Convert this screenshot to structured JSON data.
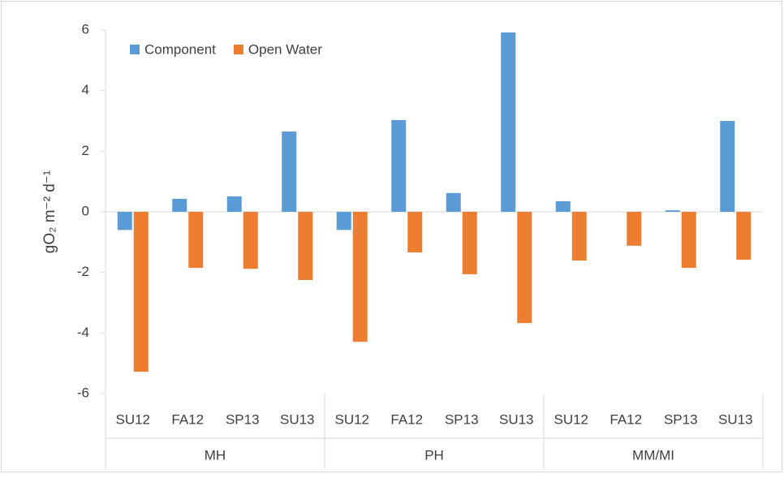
{
  "chart_data": {
    "type": "bar",
    "y_label": "gO₂ m⁻² d⁻¹",
    "categories": [
      "SU12",
      "FA12",
      "SP13",
      "SU13",
      "SU12",
      "FA12",
      "SP13",
      "SU13",
      "SU12",
      "FA12",
      "SP13",
      "SU13"
    ],
    "group_labels": [
      "MH",
      "PH",
      "MM/MI"
    ],
    "series": [
      {
        "name": "Component",
        "color": "#5b9bd5",
        "values": [
          -0.6,
          0.43,
          0.51,
          2.65,
          -0.6,
          3.03,
          0.62,
          5.92,
          0.35,
          0,
          0.05,
          3.0
        ]
      },
      {
        "name": "Open Water",
        "color": "#ed7d31",
        "values": [
          -5.28,
          -1.85,
          -1.88,
          -2.25,
          -4.29,
          -1.34,
          -2.06,
          -3.67,
          -1.61,
          -1.12,
          -1.85,
          -1.58
        ]
      }
    ],
    "ylim": [
      -6,
      6
    ],
    "yticks": [
      -6,
      -4,
      -2,
      0,
      2,
      4,
      6
    ],
    "legend": "upper left"
  }
}
